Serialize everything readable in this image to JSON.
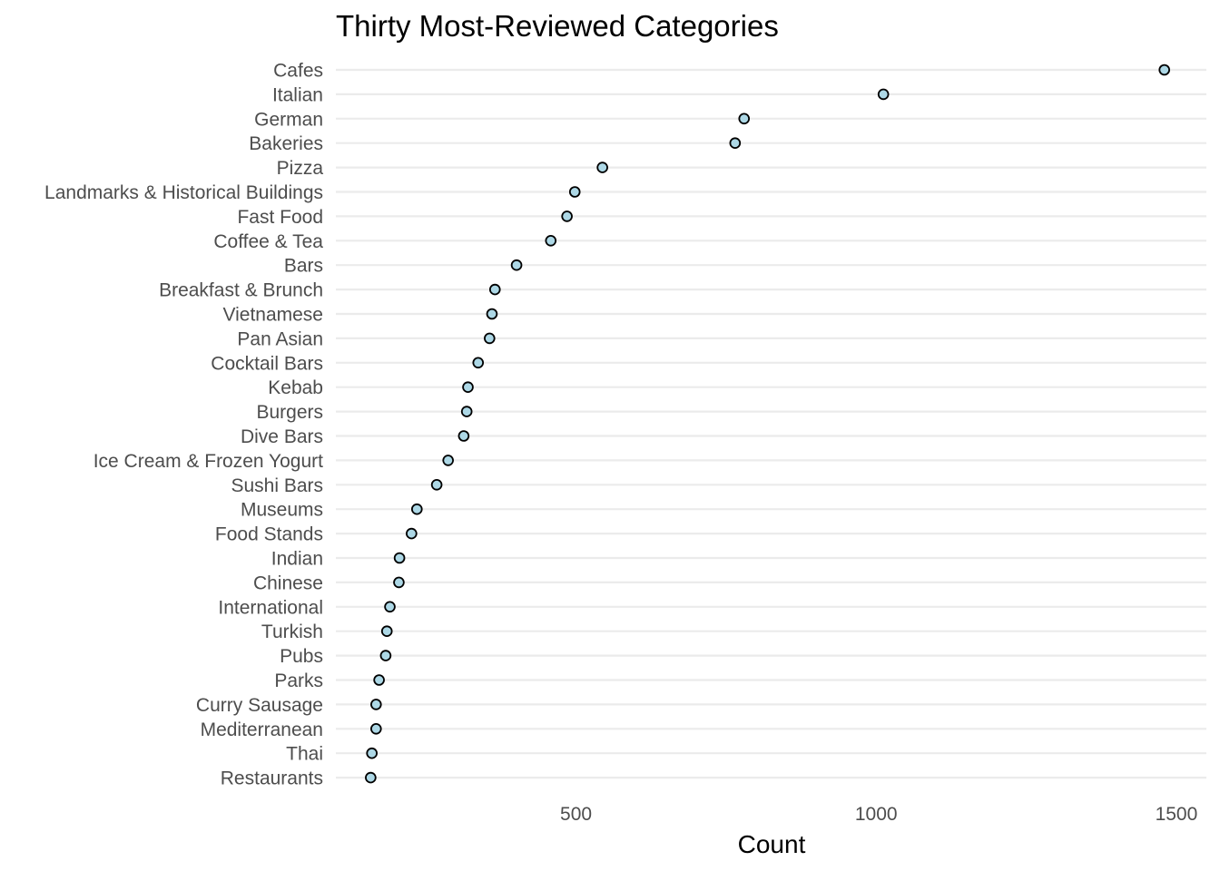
{
  "chart_data": {
    "type": "scatter",
    "title": "Thirty Most-Reviewed Categories",
    "xlabel": "Count",
    "ylabel": "",
    "xlim": [
      100,
      1550
    ],
    "xticks": [
      500,
      1000,
      1500
    ],
    "grid": true,
    "point_fill": "#add8e6",
    "point_stroke": "#000000",
    "categories": [
      "Cafes",
      "Italian",
      "German",
      "Bakeries",
      "Pizza",
      "Landmarks & Historical Buildings",
      "Fast Food",
      "Coffee & Tea",
      "Bars",
      "Breakfast & Brunch",
      "Vietnamese",
      "Pan Asian",
      "Cocktail Bars",
      "Kebab",
      "Burgers",
      "Dive Bars",
      "Ice Cream & Frozen Yogurt",
      "Sushi Bars",
      "Museums",
      "Food Stands",
      "Indian",
      "Chinese",
      "International",
      "Turkish",
      "Pubs",
      "Parks",
      "Curry Sausage",
      "Mediterranean",
      "Thai",
      "Restaurants"
    ],
    "values": [
      1480,
      1012,
      780,
      765,
      544,
      498,
      485,
      458,
      401,
      365,
      360,
      356,
      337,
      320,
      318,
      313,
      287,
      268,
      235,
      226,
      206,
      205,
      190,
      185,
      183,
      172,
      167,
      167,
      160,
      158
    ]
  }
}
